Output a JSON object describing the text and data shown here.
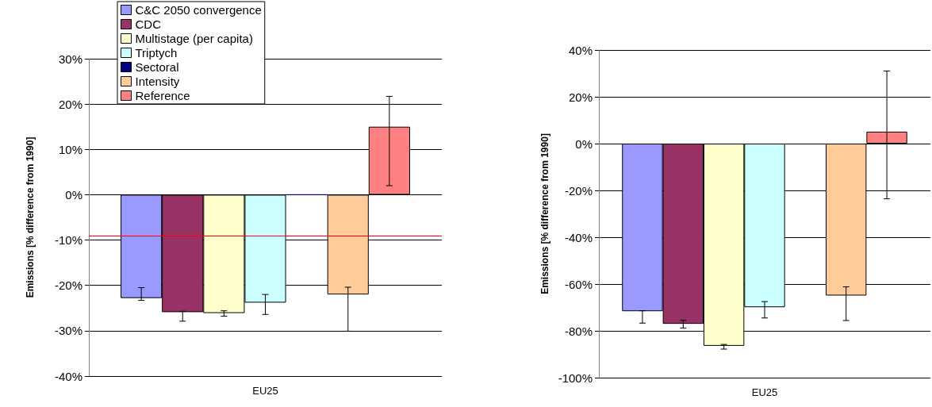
{
  "chart_data": [
    {
      "type": "bar",
      "ylabel": "Emissions [% difference from 1990]",
      "categories": [
        "EU25"
      ],
      "ylim": [
        -40,
        30
      ],
      "yticks": [
        {
          "value": -40,
          "label": "-40%"
        },
        {
          "value": -30,
          "label": "-30%"
        },
        {
          "value": -20,
          "label": "-20%"
        },
        {
          "value": -10,
          "label": "-10%"
        },
        {
          "value": 0,
          "label": "0%"
        },
        {
          "value": 10,
          "label": "10%"
        },
        {
          "value": 20,
          "label": "20%"
        },
        {
          "value": 30,
          "label": "30%"
        }
      ],
      "grid": "y",
      "legend": "top",
      "ref_lines": [
        {
          "axis": "y",
          "value": -9,
          "color": "#ff0000"
        }
      ],
      "series": [
        {
          "name": "C&C 2050 convergence",
          "color": "#9999ff",
          "values": [
            -22.8
          ],
          "errors": [
            [
              -23.3,
              -20.5
            ]
          ]
        },
        {
          "name": "CDC",
          "color": "#993366",
          "values": [
            -25.9
          ],
          "errors": [
            [
              -27.9,
              -25.7
            ]
          ]
        },
        {
          "name": "Multistage (per capita)",
          "color": "#ffffcc",
          "values": [
            -26.1
          ],
          "errors": [
            [
              -26.8,
              -25.6
            ]
          ]
        },
        {
          "name": "Triptych",
          "color": "#ccffff",
          "values": [
            -23.8
          ],
          "errors": [
            [
              -26.4,
              -22.0
            ]
          ]
        },
        {
          "name": "Sectoral",
          "color": "#000080",
          "values": [
            0
          ],
          "errors": [
            null
          ]
        },
        {
          "name": "Intensity",
          "color": "#ffcc99",
          "values": [
            -22.0
          ],
          "errors": [
            [
              -30.1,
              -20.4
            ]
          ]
        },
        {
          "name": "Reference",
          "color": "#ff8080",
          "values": [
            15.0
          ],
          "errors": [
            [
              2.0,
              21.7
            ]
          ]
        }
      ]
    },
    {
      "type": "bar",
      "ylabel": "Emissions [% difference from 1990]",
      "categories": [
        "EU25"
      ],
      "ylim": [
        -100,
        40
      ],
      "yticks": [
        {
          "value": -100,
          "label": "-100%"
        },
        {
          "value": -80,
          "label": "-80%"
        },
        {
          "value": -60,
          "label": "-60%"
        },
        {
          "value": -40,
          "label": "-40%"
        },
        {
          "value": -20,
          "label": "-20%"
        },
        {
          "value": 0,
          "label": "0%"
        },
        {
          "value": 20,
          "label": "20%"
        },
        {
          "value": 40,
          "label": "40%"
        }
      ],
      "grid": "y",
      "series": [
        {
          "color": "#9999ff",
          "values": [
            -71.6
          ],
          "errors": [
            [
              -76.7,
              -71.4
            ]
          ]
        },
        {
          "color": "#993366",
          "values": [
            -77.0
          ],
          "errors": [
            [
              -78.8,
              -75.5
            ]
          ]
        },
        {
          "color": "#ffffcc",
          "values": [
            -86.4
          ],
          "errors": [
            [
              -87.8,
              -85.8
            ]
          ]
        },
        {
          "color": "#ccffff",
          "values": [
            -69.9
          ],
          "errors": [
            [
              -74.5,
              -67.5
            ]
          ]
        },
        {
          "color": "#000080",
          "values": [
            null
          ],
          "errors": [
            null
          ]
        },
        {
          "color": "#ffcc99",
          "values": [
            -64.9
          ],
          "errors": [
            [
              -75.6,
              -61.2
            ]
          ]
        },
        {
          "color": "#ff8080",
          "values": [
            5.1
          ],
          "errors": [
            [
              -23.6,
              31.0
            ]
          ]
        }
      ]
    }
  ]
}
